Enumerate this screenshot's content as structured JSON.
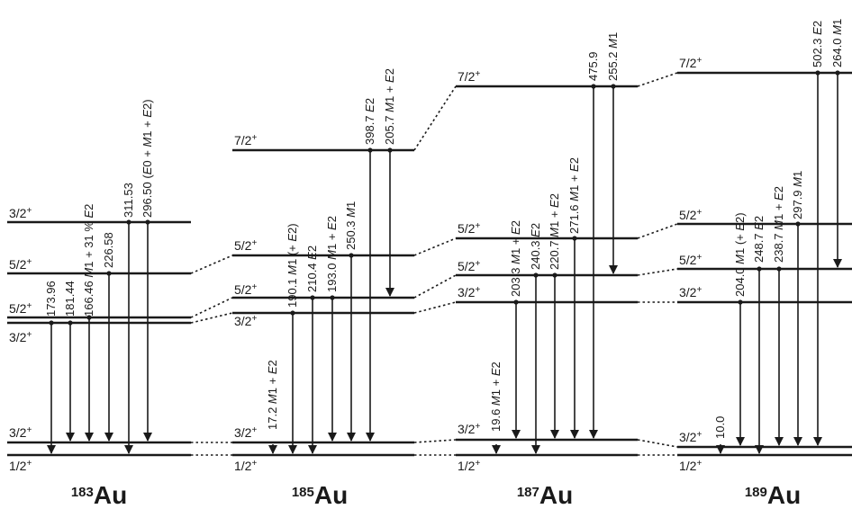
{
  "nuclei": [
    {
      "key": "au183",
      "mass": "183",
      "symbol": "Au",
      "levels": [
        {
          "id": "gs",
          "label": "1/2",
          "parity": "+"
        },
        {
          "id": "l10",
          "label": "3/2",
          "parity": "+"
        },
        {
          "id": "l3a",
          "label": "3/2",
          "parity": "+"
        },
        {
          "id": "l5a",
          "label": "5/2",
          "parity": "+"
        },
        {
          "id": "l5b",
          "label": "5/2",
          "parity": "+"
        },
        {
          "id": "l3b",
          "label": "3/2",
          "parity": "+"
        }
      ],
      "transitions": [
        {
          "energy": "173.96",
          "multipolarity": ""
        },
        {
          "energy": "181.44",
          "multipolarity": ""
        },
        {
          "energy": "166.46",
          "multipolarity": "M1 + 31 % E2"
        },
        {
          "energy": "226.58",
          "multipolarity": ""
        },
        {
          "energy": "311.53",
          "multipolarity": ""
        },
        {
          "energy": "296.50",
          "multipolarity": "(E0 + M1 + E2)"
        }
      ]
    },
    {
      "key": "au185",
      "mass": "185",
      "symbol": "Au",
      "levels": [
        {
          "id": "gs",
          "label": "1/2",
          "parity": "+"
        },
        {
          "id": "l10",
          "label": "3/2",
          "parity": "+"
        },
        {
          "id": "l3a",
          "label": "3/2",
          "parity": "+"
        },
        {
          "id": "l5a",
          "label": "5/2",
          "parity": "+"
        },
        {
          "id": "l5b",
          "label": "5/2",
          "parity": "+"
        },
        {
          "id": "l7",
          "label": "7/2",
          "parity": "+"
        }
      ],
      "transitions": [
        {
          "energy": "17.2",
          "multipolarity": "M1 + E2"
        },
        {
          "energy": "190.1",
          "multipolarity": "M1 (+ E2)"
        },
        {
          "energy": "210.4",
          "multipolarity": "E2"
        },
        {
          "energy": "193.0",
          "multipolarity": "M1 + E2"
        },
        {
          "energy": "250.3",
          "multipolarity": "M1"
        },
        {
          "energy": "398.7",
          "multipolarity": "E2"
        },
        {
          "energy": "205.7",
          "multipolarity": "M1 + E2"
        }
      ]
    },
    {
      "key": "au187",
      "mass": "187",
      "symbol": "Au",
      "levels": [
        {
          "id": "gs",
          "label": "1/2",
          "parity": "+"
        },
        {
          "id": "l10",
          "label": "3/2",
          "parity": "+"
        },
        {
          "id": "l3a",
          "label": "3/2",
          "parity": "+"
        },
        {
          "id": "l5a",
          "label": "5/2",
          "parity": "+"
        },
        {
          "id": "l5b",
          "label": "5/2",
          "parity": "+"
        },
        {
          "id": "l7",
          "label": "7/2",
          "parity": "+"
        }
      ],
      "transitions": [
        {
          "energy": "19.6",
          "multipolarity": "M1 + E2"
        },
        {
          "energy": "203.3",
          "multipolarity": "M1 + E2"
        },
        {
          "energy": "240.3",
          "multipolarity": "E2"
        },
        {
          "energy": "220.7",
          "multipolarity": "M1 + E2"
        },
        {
          "energy": "271.6",
          "multipolarity": "M1 + E2"
        },
        {
          "energy": "475.9",
          "multipolarity": ""
        },
        {
          "energy": "255.2",
          "multipolarity": "M1"
        }
      ]
    },
    {
      "key": "au189",
      "mass": "189",
      "symbol": "Au",
      "levels": [
        {
          "id": "gs",
          "label": "1/2",
          "parity": "+"
        },
        {
          "id": "l10",
          "label": "3/2",
          "parity": "+"
        },
        {
          "id": "l3a",
          "label": "3/2",
          "parity": "+"
        },
        {
          "id": "l5a",
          "label": "5/2",
          "parity": "+"
        },
        {
          "id": "l5b",
          "label": "5/2",
          "parity": "+"
        },
        {
          "id": "l7",
          "label": "7/2",
          "parity": "+"
        }
      ],
      "transitions": [
        {
          "energy": "10.0",
          "multipolarity": ""
        },
        {
          "energy": "204.0",
          "multipolarity": "M1 (+ E2)"
        },
        {
          "energy": "248.7",
          "multipolarity": "E2"
        },
        {
          "energy": "238.7",
          "multipolarity": "M1 + E2"
        },
        {
          "energy": "297.9",
          "multipolarity": "M1"
        },
        {
          "energy": "502.3",
          "multipolarity": "E2"
        },
        {
          "energy": "264.0",
          "multipolarity": "M1"
        }
      ]
    }
  ]
}
